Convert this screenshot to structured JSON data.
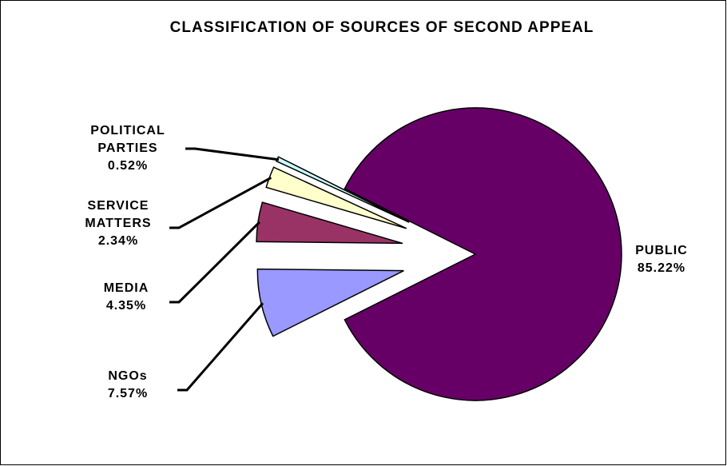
{
  "chart_data": {
    "type": "pie",
    "title": "CLASSIFICATION OF SOURCES OF SECOND APPEAL",
    "categories": [
      "PUBLIC",
      "NGOs",
      "MEDIA",
      "SERVICE MATTERS",
      "POLITICAL PARTIES"
    ],
    "values": [
      85.22,
      7.57,
      4.35,
      2.34,
      0.52
    ],
    "value_labels": [
      "85.22%",
      "7.57%",
      "4.35%",
      "2.34%",
      "0.52%"
    ],
    "colors": [
      "#660066",
      "#9999ff",
      "#993366",
      "#ffffcc",
      "#ccffff"
    ]
  }
}
